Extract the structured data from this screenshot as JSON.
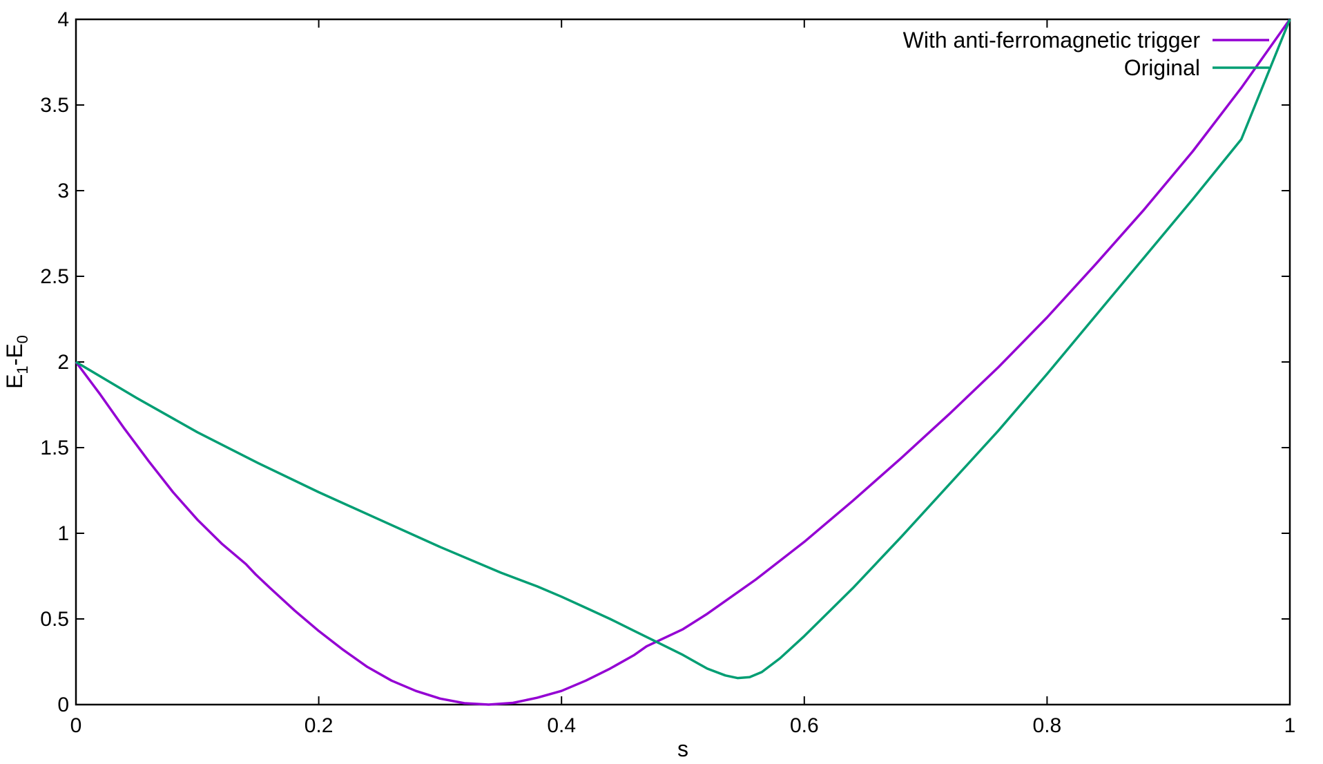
{
  "chart_data": {
    "type": "line",
    "xlabel": "s",
    "ylabel": {
      "main": "E",
      "sub1": "1",
      "mid": "-E",
      "sub2": "0"
    },
    "xlim": [
      0,
      1
    ],
    "ylim": [
      0,
      4
    ],
    "xticks": [
      0,
      0.2,
      0.4,
      0.6,
      0.8,
      1
    ],
    "xtick_labels": [
      "0",
      "0.2",
      "0.4",
      "0.6",
      "0.8",
      "1"
    ],
    "yticks": [
      0,
      0.5,
      1,
      1.5,
      2,
      2.5,
      3,
      3.5,
      4
    ],
    "ytick_labels": [
      "0",
      "0.5",
      "1",
      "1.5",
      "2",
      "2.5",
      "3",
      "3.5",
      "4"
    ],
    "grid": false,
    "legend_position": "top-right",
    "series": [
      {
        "name": "With anti-ferromagnetic trigger",
        "color": "#9400D3",
        "x": [
          0,
          0.02,
          0.04,
          0.06,
          0.08,
          0.1,
          0.12,
          0.14,
          0.148,
          0.16,
          0.18,
          0.2,
          0.22,
          0.24,
          0.26,
          0.28,
          0.3,
          0.32,
          0.34,
          0.36,
          0.38,
          0.4,
          0.42,
          0.44,
          0.46,
          0.47,
          0.5,
          0.52,
          0.54,
          0.56,
          0.58,
          0.6,
          0.64,
          0.68,
          0.72,
          0.76,
          0.8,
          0.84,
          0.88,
          0.92,
          0.96,
          1.0
        ],
        "y": [
          2.0,
          1.81,
          1.61,
          1.42,
          1.24,
          1.08,
          0.94,
          0.82,
          0.76,
          0.68,
          0.55,
          0.43,
          0.32,
          0.22,
          0.14,
          0.08,
          0.035,
          0.008,
          0.0,
          0.01,
          0.04,
          0.08,
          0.14,
          0.21,
          0.29,
          0.34,
          0.44,
          0.53,
          0.63,
          0.73,
          0.84,
          0.95,
          1.19,
          1.44,
          1.7,
          1.97,
          2.26,
          2.57,
          2.89,
          3.23,
          3.6,
          4.0
        ]
      },
      {
        "name": "Original",
        "color": "#009E73",
        "x": [
          0,
          0.05,
          0.1,
          0.15,
          0.2,
          0.25,
          0.3,
          0.35,
          0.38,
          0.4,
          0.42,
          0.44,
          0.46,
          0.48,
          0.5,
          0.52,
          0.535,
          0.545,
          0.555,
          0.565,
          0.58,
          0.6,
          0.64,
          0.68,
          0.72,
          0.76,
          0.8,
          0.84,
          0.88,
          0.92,
          0.96,
          1.0
        ],
        "y": [
          2.0,
          1.79,
          1.59,
          1.41,
          1.24,
          1.08,
          0.92,
          0.77,
          0.69,
          0.63,
          0.565,
          0.5,
          0.43,
          0.36,
          0.29,
          0.21,
          0.17,
          0.155,
          0.16,
          0.19,
          0.27,
          0.4,
          0.68,
          0.98,
          1.29,
          1.6,
          1.93,
          2.27,
          2.61,
          2.95,
          3.3,
          4.0
        ]
      }
    ]
  }
}
